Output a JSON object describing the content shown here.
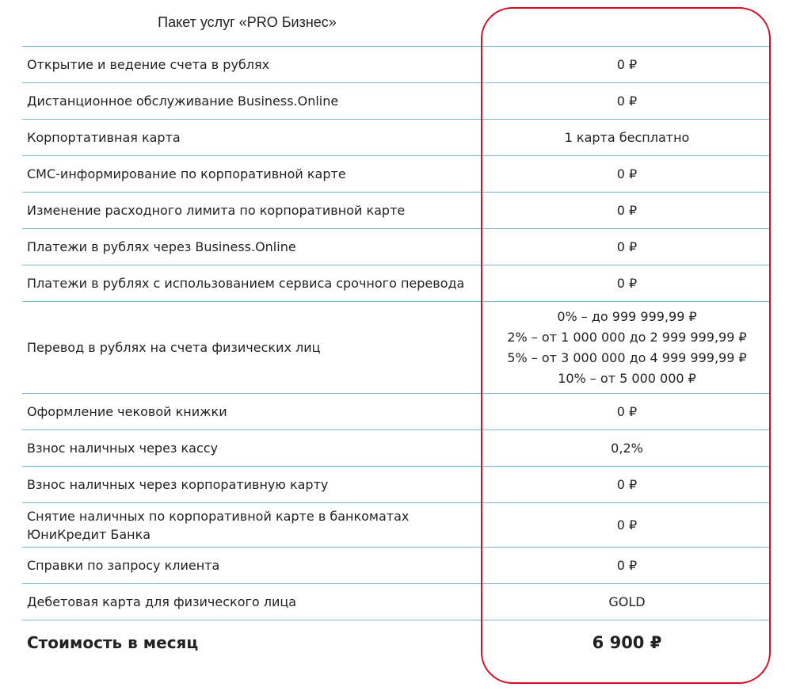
{
  "header": {
    "title": "Пакет услуг «PRO Бизнес»"
  },
  "services": [
    {
      "name": "Открытие и ведение счета в рублях",
      "value": "0 ₽"
    },
    {
      "name": "Дистанционное обслуживание Business.Online",
      "value": "0 ₽"
    },
    {
      "name": "Корпортативная карта",
      "value": "1 карта бесплатно"
    },
    {
      "name": "СМС-информирование по корпоративной карте",
      "value": "0 ₽"
    },
    {
      "name": "Изменение расходного лимита по корпоративной карте",
      "value": "0 ₽"
    },
    {
      "name": "Платежи в рублях через Business.Online",
      "value": "0 ₽"
    },
    {
      "name": "Платежи в рублях с использованием сервиса срочного перевода",
      "value": "0 ₽"
    },
    {
      "name": "Перевод в рублях на счета физических лиц",
      "value_lines": [
        "0% – до 999 999,99 ₽",
        "2% – от 1 000 000 до 2 999 999,99 ₽",
        "5% – от 3 000 000 до 4 999 999,99 ₽",
        "10% – от 5 000 000 ₽"
      ]
    },
    {
      "name": "Оформление чековой книжки",
      "value": "0 ₽"
    },
    {
      "name": "Взнос наличных через кассу",
      "value": "0,2%"
    },
    {
      "name": "Взнос наличных через корпоративную карту",
      "value": "0 ₽"
    },
    {
      "name_lines": [
        "Снятие наличных по корпоративной карте в банкоматах",
        "ЮниКредит Банка"
      ],
      "value": "0 ₽"
    },
    {
      "name": "Справки по запросу клиента",
      "value": "0 ₽"
    },
    {
      "name": "Дебетовая карта для физического лица",
      "value": "GOLD"
    }
  ],
  "total": {
    "label": "Стоимость в месяц",
    "value": "6 900 ₽"
  },
  "colors": {
    "highlight_border": "#d40f23",
    "row_divider": "#7fb8c9",
    "text": "#222222"
  }
}
